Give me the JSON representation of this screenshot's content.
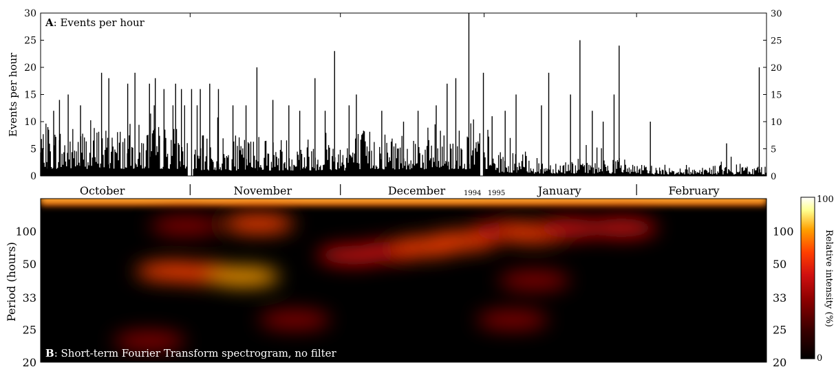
{
  "chart_data": [
    {
      "type": "bar",
      "title_prefix": "A",
      "title_rest": ": Events per hour",
      "ylabel": "Events per hour",
      "ylim": [
        0,
        30
      ],
      "yticks": [
        "0",
        "5",
        "10",
        "15",
        "20",
        "25",
        "30"
      ],
      "months": [
        "October",
        "November",
        "December",
        "January",
        "February"
      ],
      "year_labels": [
        "1994",
        "1995"
      ],
      "bar_color": "#000000",
      "spikes": [
        {
          "x": 0.01,
          "v": 9
        },
        {
          "x": 0.018,
          "v": 12
        },
        {
          "x": 0.026,
          "v": 14
        },
        {
          "x": 0.038,
          "v": 15
        },
        {
          "x": 0.055,
          "v": 13
        },
        {
          "x": 0.084,
          "v": 19
        },
        {
          "x": 0.094,
          "v": 18
        },
        {
          "x": 0.12,
          "v": 17
        },
        {
          "x": 0.13,
          "v": 19
        },
        {
          "x": 0.15,
          "v": 17
        },
        {
          "x": 0.158,
          "v": 18
        },
        {
          "x": 0.17,
          "v": 16
        },
        {
          "x": 0.186,
          "v": 17
        },
        {
          "x": 0.194,
          "v": 16
        },
        {
          "x": 0.208,
          "v": 16
        },
        {
          "x": 0.22,
          "v": 16
        },
        {
          "x": 0.233,
          "v": 17
        },
        {
          "x": 0.245,
          "v": 16
        },
        {
          "x": 0.265,
          "v": 13
        },
        {
          "x": 0.283,
          "v": 13
        },
        {
          "x": 0.298,
          "v": 20
        },
        {
          "x": 0.32,
          "v": 14
        },
        {
          "x": 0.342,
          "v": 13
        },
        {
          "x": 0.357,
          "v": 12
        },
        {
          "x": 0.378,
          "v": 18
        },
        {
          "x": 0.392,
          "v": 12
        },
        {
          "x": 0.405,
          "v": 23
        },
        {
          "x": 0.425,
          "v": 13
        },
        {
          "x": 0.435,
          "v": 15
        },
        {
          "x": 0.47,
          "v": 12
        },
        {
          "x": 0.5,
          "v": 10
        },
        {
          "x": 0.52,
          "v": 12
        },
        {
          "x": 0.545,
          "v": 13
        },
        {
          "x": 0.56,
          "v": 17
        },
        {
          "x": 0.572,
          "v": 18
        },
        {
          "x": 0.59,
          "v": 30
        },
        {
          "x": 0.61,
          "v": 19
        },
        {
          "x": 0.622,
          "v": 11
        },
        {
          "x": 0.64,
          "v": 12
        },
        {
          "x": 0.655,
          "v": 15
        },
        {
          "x": 0.69,
          "v": 13
        },
        {
          "x": 0.7,
          "v": 19
        },
        {
          "x": 0.73,
          "v": 15
        },
        {
          "x": 0.743,
          "v": 25
        },
        {
          "x": 0.76,
          "v": 12
        },
        {
          "x": 0.775,
          "v": 10
        },
        {
          "x": 0.79,
          "v": 15
        },
        {
          "x": 0.797,
          "v": 24
        },
        {
          "x": 0.84,
          "v": 10
        },
        {
          "x": 0.945,
          "v": 6
        },
        {
          "x": 0.99,
          "v": 20
        }
      ]
    },
    {
      "type": "heatmap",
      "title_prefix": "B",
      "title_rest": ": Short-term Fourier Transform spectrogram, no filter",
      "ylabel": "Period (hours)",
      "yticks": [
        "100",
        "50",
        "33",
        "25",
        "20"
      ],
      "colorbar_label": "Relative intensity (%)",
      "colorbar_ticks": [
        "100",
        "0"
      ],
      "colors": [
        "#000000",
        "#3a0000",
        "#8a0000",
        "#d01010",
        "#ff4000",
        "#ffa000",
        "#ffff90",
        "#ffffff"
      ],
      "blobs": [
        {
          "x": 0.2,
          "period": 120,
          "intensity": 0.25
        },
        {
          "x": 0.3,
          "period": 130,
          "intensity": 0.55
        },
        {
          "x": 0.18,
          "period": 45,
          "intensity": 0.45
        },
        {
          "x": 0.22,
          "period": 44,
          "intensity": 0.55
        },
        {
          "x": 0.28,
          "period": 42,
          "intensity": 0.65
        },
        {
          "x": 0.43,
          "period": 58,
          "intensity": 0.35
        },
        {
          "x": 0.48,
          "period": 62,
          "intensity": 0.4
        },
        {
          "x": 0.53,
          "period": 68,
          "intensity": 0.45
        },
        {
          "x": 0.58,
          "period": 77,
          "intensity": 0.5
        },
        {
          "x": 0.64,
          "period": 100,
          "intensity": 0.35
        },
        {
          "x": 0.68,
          "period": 95,
          "intensity": 0.55
        },
        {
          "x": 0.73,
          "period": 110,
          "intensity": 0.4
        },
        {
          "x": 0.8,
          "period": 112,
          "intensity": 0.35
        },
        {
          "x": 0.68,
          "period": 40,
          "intensity": 0.25
        },
        {
          "x": 0.65,
          "period": 27,
          "intensity": 0.25
        },
        {
          "x": 0.35,
          "period": 27,
          "intensity": 0.18
        },
        {
          "x": 0.15,
          "period": 23,
          "intensity": 0.15
        }
      ]
    }
  ]
}
